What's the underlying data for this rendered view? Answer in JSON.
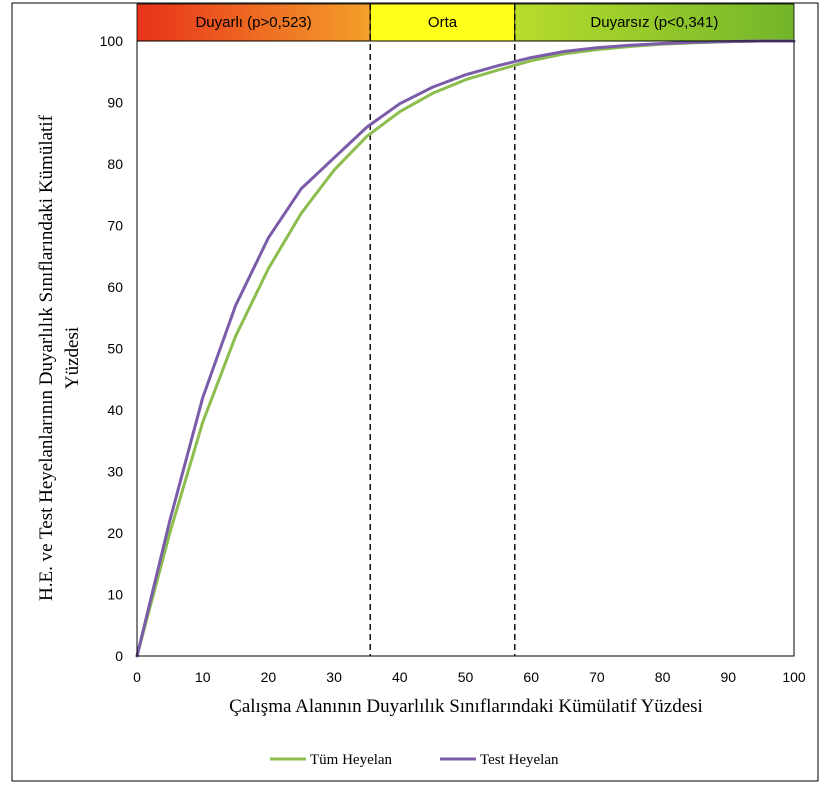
{
  "chart_data": {
    "type": "line",
    "xlabel": "Çalışma Alanının Duyarlılık Sınıflarındaki Kümülatif Yüzdesi",
    "ylabel_line1": "H.E. ve Test Heyelanlarının Duyarlılık Sınıflarındaki Kümülatif",
    "ylabel_line2": "Yüzdesi",
    "xlim": [
      0,
      100
    ],
    "ylim": [
      0,
      100
    ],
    "xticks": [
      0,
      10,
      20,
      30,
      40,
      50,
      60,
      70,
      80,
      90,
      100
    ],
    "yticks": [
      0,
      10,
      20,
      30,
      40,
      50,
      60,
      70,
      80,
      90,
      100
    ],
    "grid": false,
    "legend_position": "bottom",
    "bands": [
      {
        "label": "Duyarlı (p>0,523)",
        "x_start": 0,
        "x_end": 35.5,
        "colors": [
          "#e8321a",
          "#f3a02a"
        ]
      },
      {
        "label": "Orta",
        "x_start": 35.5,
        "x_end": 57.5,
        "colors": [
          "#ffff1a",
          "#ffff1a"
        ]
      },
      {
        "label": "Duyarsız (p<0,341)",
        "x_start": 57.5,
        "x_end": 100,
        "colors": [
          "#b8dc2c",
          "#72b52a"
        ]
      }
    ],
    "vlines": [
      35.5,
      57.5
    ],
    "series": [
      {
        "name": "Tüm Heyelan",
        "color": "#8cbd4e",
        "x": [
          0,
          5,
          10,
          15,
          20,
          25,
          30,
          35,
          40,
          45,
          50,
          55,
          60,
          65,
          70,
          75,
          80,
          85,
          90,
          95,
          100
        ],
        "y": [
          0,
          20,
          38,
          52,
          63,
          72,
          79,
          84.5,
          88.5,
          91.5,
          93.7,
          95.3,
          96.8,
          97.9,
          98.6,
          99.1,
          99.5,
          99.7,
          99.9,
          100,
          100
        ]
      },
      {
        "name": "Test Heyelan",
        "color": "#7a5ca8",
        "x": [
          0,
          5,
          10,
          15,
          20,
          25,
          30,
          35,
          40,
          45,
          50,
          55,
          60,
          65,
          70,
          75,
          80,
          85,
          90,
          95,
          100
        ],
        "y": [
          0,
          22,
          42,
          57,
          68,
          76,
          81,
          86,
          89.8,
          92.5,
          94.5,
          96,
          97.3,
          98.3,
          98.9,
          99.3,
          99.6,
          99.8,
          99.9,
          100,
          100
        ]
      }
    ]
  }
}
